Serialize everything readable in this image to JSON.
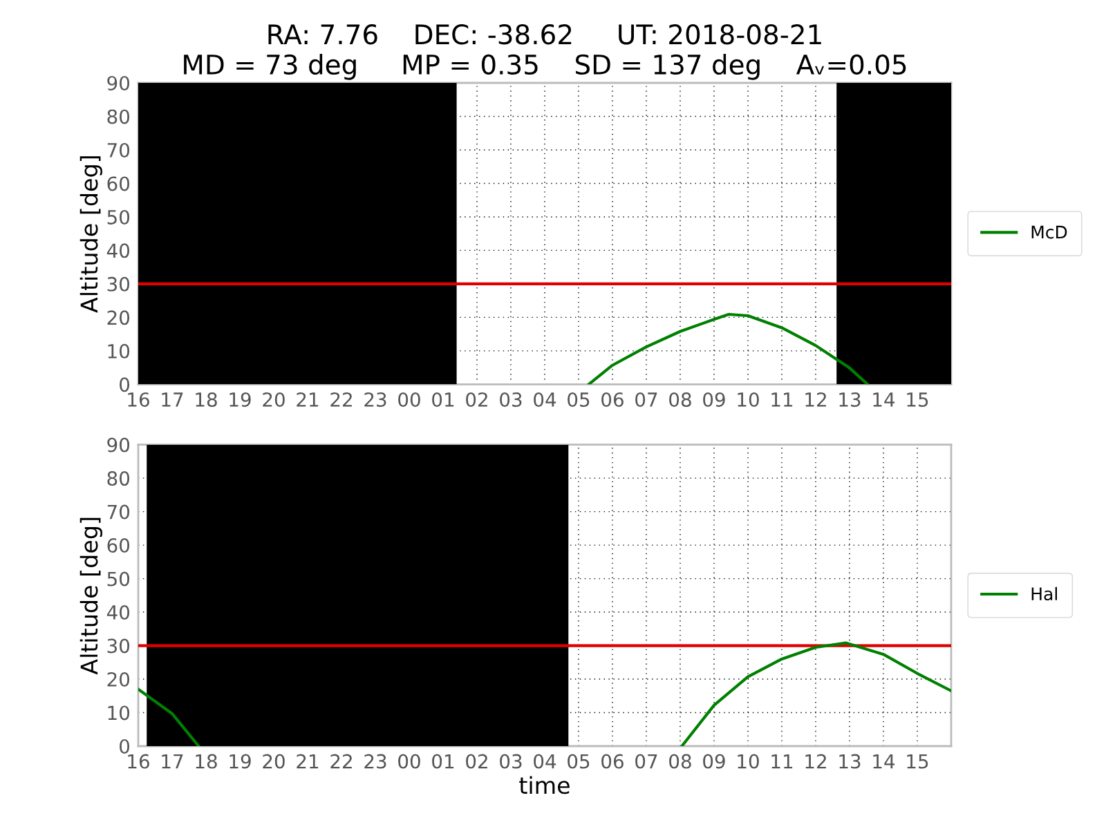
{
  "chart_data": [
    {
      "type": "line",
      "title": "RA: 7.76    DEC: -38.62     UT: 2018-08-21",
      "subtitle": "MD = 73 deg     MP = 0.35    SD = 137 deg    Aᵥ=0.05",
      "ylabel": "Altitude [deg]",
      "series": [
        {
          "name": "McD",
          "color": "#008000",
          "x": [
            "2018-08-22T05:18",
            "2018-08-22T06:00",
            "2018-08-22T07:00",
            "2018-08-22T08:00",
            "2018-08-22T09:00",
            "2018-08-22T09:26",
            "2018-08-22T10:00",
            "2018-08-22T11:00",
            "2018-08-22T12:00",
            "2018-08-22T13:00",
            "2018-08-22T13:32"
          ],
          "values": [
            0,
            5.7,
            11.2,
            15.8,
            19.4,
            20.9,
            20.5,
            16.9,
            11.6,
            4.9,
            0
          ]
        }
      ],
      "bands": [
        {
          "axis": "x",
          "from": "2018-08-21T16:00",
          "to": "2018-08-22T01:24",
          "color": "#000000"
        },
        {
          "axis": "x",
          "from": "2018-08-22T12:37",
          "to": "2018-08-22T16:00",
          "color": "#000000"
        }
      ],
      "ref_lines": [
        {
          "axis": "y",
          "value": 30,
          "color": "#e00000"
        }
      ],
      "xlim": [
        "2018-08-21T16:00",
        "2018-08-22T16:00"
      ],
      "ylim": [
        0,
        90
      ],
      "xticks": [
        {
          "value": "2018-08-21T16:00",
          "label": "16"
        },
        {
          "value": "2018-08-21T17:00",
          "label": "17"
        },
        {
          "value": "2018-08-21T18:00",
          "label": "18"
        },
        {
          "value": "2018-08-21T19:00",
          "label": "19"
        },
        {
          "value": "2018-08-21T20:00",
          "label": "20"
        },
        {
          "value": "2018-08-21T21:00",
          "label": "21"
        },
        {
          "value": "2018-08-21T22:00",
          "label": "22"
        },
        {
          "value": "2018-08-21T23:00",
          "label": "23"
        },
        {
          "value": "2018-08-22T00:00",
          "label": "00"
        },
        {
          "value": "2018-08-22T01:00",
          "label": "01"
        },
        {
          "value": "2018-08-22T02:00",
          "label": "02"
        },
        {
          "value": "2018-08-22T03:00",
          "label": "03"
        },
        {
          "value": "2018-08-22T04:00",
          "label": "04"
        },
        {
          "value": "2018-08-22T05:00",
          "label": "05"
        },
        {
          "value": "2018-08-22T06:00",
          "label": "06"
        },
        {
          "value": "2018-08-22T07:00",
          "label": "07"
        },
        {
          "value": "2018-08-22T08:00",
          "label": "08"
        },
        {
          "value": "2018-08-22T09:00",
          "label": "09"
        },
        {
          "value": "2018-08-22T10:00",
          "label": "10"
        },
        {
          "value": "2018-08-22T11:00",
          "label": "11"
        },
        {
          "value": "2018-08-22T12:00",
          "label": "12"
        },
        {
          "value": "2018-08-22T13:00",
          "label": "13"
        },
        {
          "value": "2018-08-22T14:00",
          "label": "14"
        },
        {
          "value": "2018-08-22T15:00",
          "label": "15"
        }
      ],
      "yticks": [
        0,
        10,
        20,
        30,
        40,
        50,
        60,
        70,
        80,
        90
      ],
      "grid": true,
      "legend": "right",
      "line_style": "solid"
    },
    {
      "type": "line",
      "xlabel": "time",
      "ylabel": "Altitude [deg]",
      "series": [
        {
          "name": "Hal",
          "color": "#008000",
          "x": [
            "2018-08-21T16:00",
            "2018-08-21T17:00",
            "2018-08-21T17:47",
            "2018-08-22T01:00",
            "2018-08-22T08:03",
            "2018-08-22T09:00",
            "2018-08-22T10:00",
            "2018-08-22T11:00",
            "2018-08-22T12:00",
            "2018-08-22T12:54",
            "2018-08-22T14:00",
            "2018-08-22T15:00",
            "2018-08-22T16:00"
          ],
          "values": [
            17,
            9.7,
            0,
            null,
            0,
            12.2,
            20.7,
            26,
            29.5,
            30.8,
            27.4,
            21.7,
            16.5
          ]
        }
      ],
      "bands": [
        {
          "axis": "x",
          "from": "2018-08-21T16:15",
          "to": "2018-08-22T04:42",
          "color": "#000000"
        }
      ],
      "ref_lines": [
        {
          "axis": "y",
          "value": 30,
          "color": "#e00000"
        }
      ],
      "xlim": [
        "2018-08-21T16:00",
        "2018-08-22T16:00"
      ],
      "ylim": [
        0,
        90
      ],
      "xticks": [
        {
          "value": "2018-08-21T16:00",
          "label": "16"
        },
        {
          "value": "2018-08-21T17:00",
          "label": "17"
        },
        {
          "value": "2018-08-21T18:00",
          "label": "18"
        },
        {
          "value": "2018-08-21T19:00",
          "label": "19"
        },
        {
          "value": "2018-08-21T20:00",
          "label": "20"
        },
        {
          "value": "2018-08-21T21:00",
          "label": "21"
        },
        {
          "value": "2018-08-21T22:00",
          "label": "22"
        },
        {
          "value": "2018-08-21T23:00",
          "label": "23"
        },
        {
          "value": "2018-08-22T00:00",
          "label": "00"
        },
        {
          "value": "2018-08-22T01:00",
          "label": "01"
        },
        {
          "value": "2018-08-22T02:00",
          "label": "02"
        },
        {
          "value": "2018-08-22T03:00",
          "label": "03"
        },
        {
          "value": "2018-08-22T04:00",
          "label": "04"
        },
        {
          "value": "2018-08-22T05:00",
          "label": "05"
        },
        {
          "value": "2018-08-22T06:00",
          "label": "06"
        },
        {
          "value": "2018-08-22T07:00",
          "label": "07"
        },
        {
          "value": "2018-08-22T08:00",
          "label": "08"
        },
        {
          "value": "2018-08-22T09:00",
          "label": "09"
        },
        {
          "value": "2018-08-22T10:00",
          "label": "10"
        },
        {
          "value": "2018-08-22T11:00",
          "label": "11"
        },
        {
          "value": "2018-08-22T12:00",
          "label": "12"
        },
        {
          "value": "2018-08-22T13:00",
          "label": "13"
        },
        {
          "value": "2018-08-22T14:00",
          "label": "14"
        },
        {
          "value": "2018-08-22T15:00",
          "label": "15"
        }
      ],
      "yticks": [
        0,
        10,
        20,
        30,
        40,
        50,
        60,
        70,
        80,
        90
      ],
      "grid": true,
      "legend": "right",
      "line_style": "solid"
    }
  ]
}
